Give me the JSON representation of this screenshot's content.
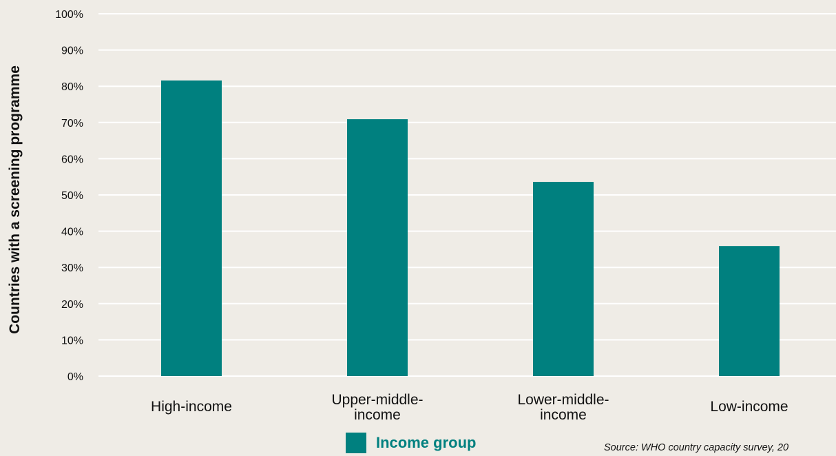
{
  "chart_data": {
    "type": "bar",
    "title": "",
    "xlabel": "",
    "ylabel": "Countries with a screening programme",
    "categories": [
      [
        "High-income"
      ],
      [
        "Upper-middle-",
        "income"
      ],
      [
        "Lower-middle-",
        "income"
      ],
      [
        "Low-income"
      ]
    ],
    "values": [
      81.6,
      70.9,
      53.6,
      35.9
    ],
    "ylim": [
      0,
      100
    ],
    "yticks": [
      "0%",
      "10%",
      "20%",
      "30%",
      "40%",
      "50%",
      "60%",
      "70%",
      "80%",
      "90%",
      "100%"
    ],
    "grid": true,
    "legend": {
      "position": "bottom",
      "label": "Income group"
    },
    "colors": {
      "bar": "#00807f",
      "grid": "#ffffff",
      "background": "#efece6",
      "legend_text": "#00807f"
    }
  },
  "source": "Source: WHO country capacity survey, 20"
}
